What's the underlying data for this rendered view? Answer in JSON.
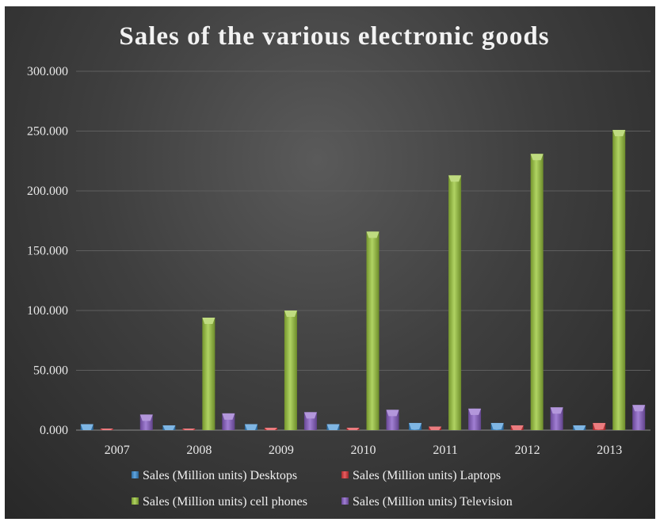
{
  "chart_data": {
    "type": "bar",
    "title": "Sales of the various electronic goods",
    "xlabel": "",
    "ylabel": "",
    "categories": [
      "2007",
      "2008",
      "2009",
      "2010",
      "2011",
      "2012",
      "2013"
    ],
    "ylim": [
      0,
      300
    ],
    "yticks": [
      "0.000",
      "50.000",
      "100.000",
      "150.000",
      "200.000",
      "250.000",
      "300.000"
    ],
    "grid": true,
    "legend_position": "bottom",
    "series": [
      {
        "name": "Sales (Million units) Desktops",
        "color": "#3a8fd6",
        "values": [
          5,
          4,
          5,
          5,
          6,
          6,
          4
        ]
      },
      {
        "name": "Sales (Million units) Laptops",
        "color": "#e0363a",
        "values": [
          1,
          1,
          2,
          2,
          3,
          4,
          6
        ]
      },
      {
        "name": "Sales (Million units) cell phones",
        "color": "#9cc83c",
        "values": [
          0,
          94,
          100,
          166,
          213,
          231,
          251
        ]
      },
      {
        "name": "Sales (Million units) Television",
        "color": "#8a5fc8",
        "values": [
          13,
          14,
          15,
          17,
          18,
          19,
          21
        ]
      }
    ]
  }
}
